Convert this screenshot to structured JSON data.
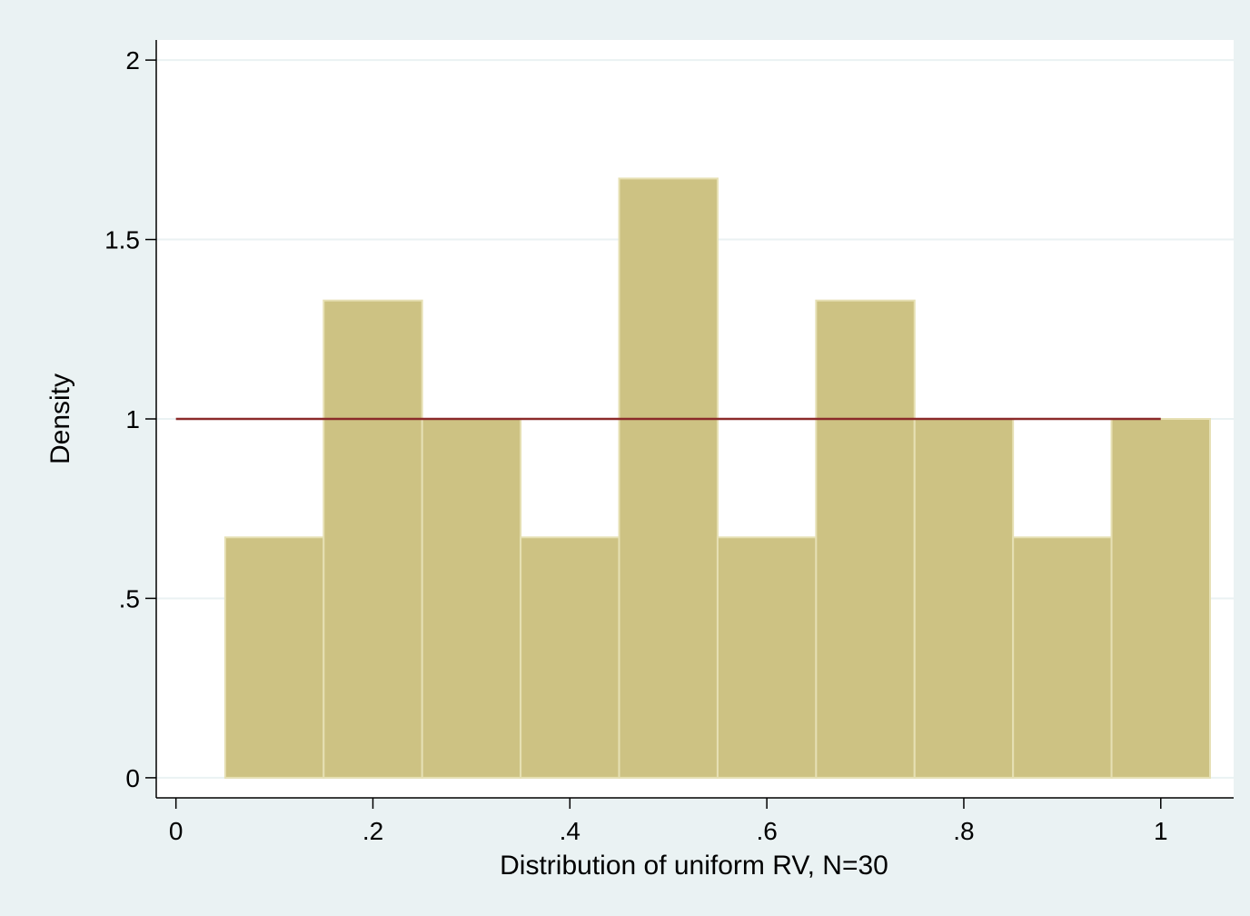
{
  "chart_data": {
    "type": "histogram",
    "x_label": "Distribution of uniform RV, N=30",
    "y_label": "Density",
    "bins": [
      0.05,
      0.15,
      0.25,
      0.35,
      0.45,
      0.55,
      0.65,
      0.75,
      0.85,
      0.95,
      1.05
    ],
    "values": [
      0.67,
      1.33,
      1,
      0.67,
      1.67,
      0.67,
      1.33,
      1,
      0.67,
      1
    ],
    "color": "#cdc283",
    "edge_color": "#e6e0b4",
    "reference_line": {
      "x": [
        0,
        1
      ],
      "y": 1,
      "color": "#8b2a2a"
    },
    "xlim": [
      -0.02,
      1.074
    ],
    "ylim": [
      -0.056,
      2.056
    ],
    "xticks": [
      0,
      {
        "value": 0.2,
        "label": ".2"
      },
      {
        "value": 0.4,
        "label": ".4"
      },
      {
        "value": 0.6,
        "label": ".6"
      },
      {
        "value": 0.8,
        "label": ".8"
      },
      1
    ],
    "yticks": [
      0,
      {
        "value": 0.5,
        "label": ".5"
      },
      1,
      1.5,
      2
    ],
    "grid": true
  }
}
